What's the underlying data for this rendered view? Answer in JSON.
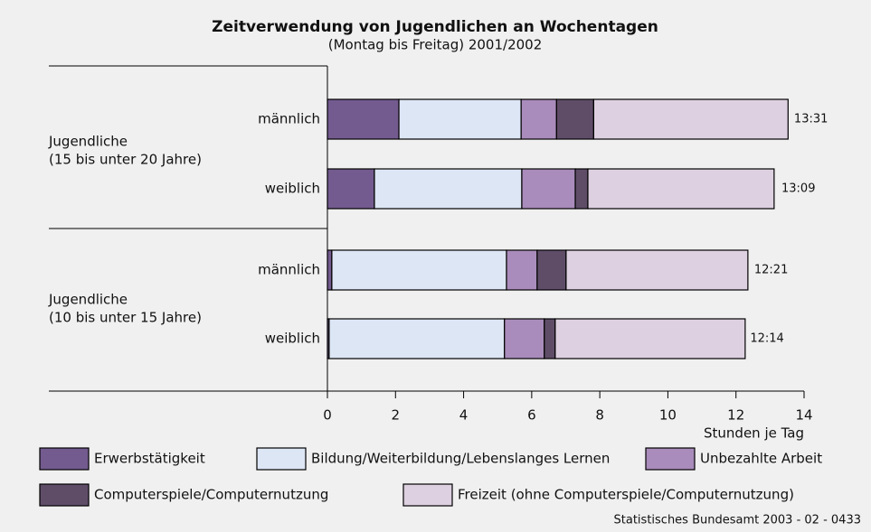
{
  "chart_data": {
    "type": "stacked-barh",
    "title": "Zeitverwendung von Jugendlichen an Wochentagen",
    "subtitle": "(Montag bis Freitag) 2001/2002",
    "xlabel": "Stunden je Tag",
    "source": "Statistisches Bundesamt 2003 - 02 - 0433",
    "groups": [
      [
        "Jugendliche",
        "(15 bis unter 20 Jahre)"
      ],
      [
        "Jugendliche",
        "(10 bis unter 15 Jahre)"
      ]
    ],
    "categories": [
      "männlich",
      "weiblich",
      "männlich",
      "weiblich"
    ],
    "series": [
      {
        "name": "Erwerbstätigkeit",
        "color": "#735b8f",
        "values": [
          2.1,
          1.38,
          0.13,
          0.05
        ]
      },
      {
        "name": "Bildung/Weiterbildung/Lebenslanges Lernen",
        "color": "#dde6f5",
        "values": [
          3.59,
          4.33,
          5.13,
          5.15
        ]
      },
      {
        "name": "Unbezahlte Arbeit",
        "color": "#a98cbb",
        "values": [
          1.04,
          1.57,
          0.9,
          1.17
        ]
      },
      {
        "name": "Computerspiele/Computernutzung",
        "color": "#5f4d68",
        "values": [
          1.09,
          0.37,
          0.85,
          0.32
        ]
      },
      {
        "name": "Freizeit (ohne Computerspiele/Computernutzung)",
        "color": "#ddd0e0",
        "values": [
          5.71,
          5.47,
          5.34,
          5.58
        ]
      }
    ],
    "totals": [
      13.52,
      13.15,
      12.35,
      12.23
    ],
    "total_labels": [
      "13:31",
      "13:09",
      "12:21",
      "12:14"
    ],
    "xlim": [
      0,
      14
    ],
    "xticks": [
      0,
      2,
      4,
      6,
      8,
      10,
      12,
      14
    ]
  }
}
